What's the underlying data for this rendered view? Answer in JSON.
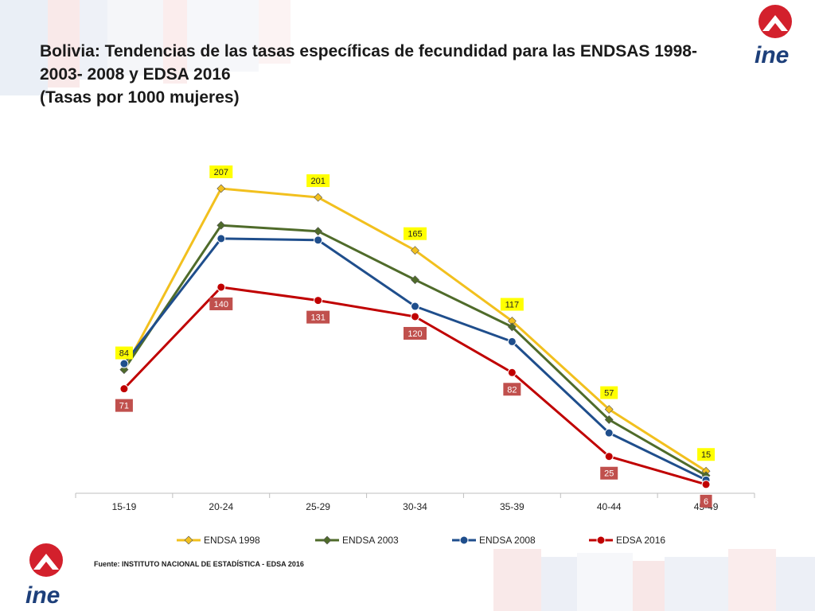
{
  "header": {
    "title_line1": "Bolivia: Tendencias de las tasas específicas de fecundidad para las ENDSAS 1998-",
    "title_line2": "2003- 2008 y EDSA 2016",
    "title_line3": "(Tasas por 1000 mujeres)"
  },
  "logo": {
    "text": "ine"
  },
  "source": "Fuente: INSTITUTO NACIONAL DE ESTADÍSTICA - EDSA 2016",
  "chart_data": {
    "type": "line",
    "title": "Bolivia: Tendencias de las tasas específicas de fecundidad para las ENDSAS 1998-2003- 2008 y EDSA 2016 (Tasas por 1000 mujeres)",
    "categories": [
      "15-19",
      "20-24",
      "25-29",
      "30-34",
      "35-39",
      "40-44",
      "45-49"
    ],
    "ylim": [
      0,
      220
    ],
    "grid": false,
    "legend_position": "bottom",
    "series": [
      {
        "name": "ENDSA 1998",
        "color": "#f2c01e",
        "marker": "diamond",
        "values": [
          84,
          207,
          201,
          165,
          117,
          57,
          15
        ],
        "labels": [
          "84",
          "207",
          "201",
          "165",
          "117",
          "57",
          "15"
        ],
        "label_bg": "#ffff00",
        "label_color": "#222222",
        "label_position": "above"
      },
      {
        "name": "ENDSA 2003",
        "color": "#4f6b2a",
        "marker": "diamond",
        "values": [
          84,
          182,
          178,
          145,
          113,
          50,
          12
        ],
        "labels": [],
        "label_bg": "",
        "label_color": "",
        "label_position": "none"
      },
      {
        "name": "ENDSA 2008",
        "color": "#1f4e8c",
        "marker": "circle",
        "values": [
          88,
          173,
          172,
          127,
          103,
          41,
          9
        ],
        "labels": [],
        "label_bg": "",
        "label_color": "",
        "label_position": "none"
      },
      {
        "name": "EDSA 2016",
        "color": "#c00000",
        "marker": "circle",
        "values": [
          71,
          140,
          131,
          120,
          82,
          25,
          6
        ],
        "labels": [
          "71",
          "140",
          "131",
          "120",
          "82",
          "25",
          "6"
        ],
        "label_bg": "#c0504d",
        "label_color": "#ffffff",
        "label_position": "below"
      }
    ]
  }
}
